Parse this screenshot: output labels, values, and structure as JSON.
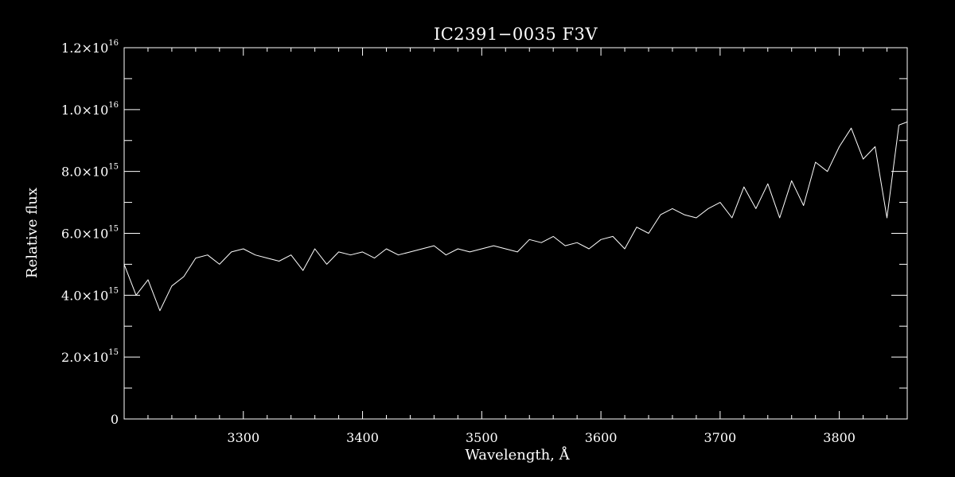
{
  "chart_data": {
    "type": "line",
    "title": "IC2391−0035   F3V",
    "xlabel": "Wavelength, Å",
    "ylabel": "Relative flux",
    "xlim": [
      3200,
      3857
    ],
    "ylim": [
      0,
      1.2e+16
    ],
    "x_ticks": [
      {
        "value": 3300,
        "label": "3300"
      },
      {
        "value": 3400,
        "label": "3400"
      },
      {
        "value": 3500,
        "label": "3500"
      },
      {
        "value": 3600,
        "label": "3600"
      },
      {
        "value": 3700,
        "label": "3700"
      },
      {
        "value": 3800,
        "label": "3800"
      }
    ],
    "y_ticks": [
      {
        "value": 0,
        "mantissa": "0",
        "exponent": ""
      },
      {
        "value": 2000000000000000.0,
        "mantissa": "2.0×10",
        "exponent": "15"
      },
      {
        "value": 4000000000000000.0,
        "mantissa": "4.0×10",
        "exponent": "15"
      },
      {
        "value": 6000000000000000.0,
        "mantissa": "6.0×10",
        "exponent": "15"
      },
      {
        "value": 8000000000000000.0,
        "mantissa": "8.0×10",
        "exponent": "15"
      },
      {
        "value": 1e+16,
        "mantissa": "1.0×10",
        "exponent": "16"
      },
      {
        "value": 1.2e+16,
        "mantissa": "1.2×10",
        "exponent": "16"
      }
    ],
    "series": [
      {
        "x": [
          3200,
          3210,
          3220,
          3230,
          3240,
          3250,
          3260,
          3270,
          3280,
          3290,
          3300,
          3310,
          3320,
          3330,
          3340,
          3350,
          3360,
          3370,
          3380,
          3390,
          3400,
          3410,
          3420,
          3430,
          3440,
          3450,
          3460,
          3470,
          3480,
          3490,
          3500,
          3510,
          3520,
          3530,
          3540,
          3550,
          3560,
          3570,
          3580,
          3590,
          3600,
          3610,
          3620,
          3630,
          3640,
          3650,
          3660,
          3670,
          3680,
          3690,
          3700,
          3710,
          3720,
          3730,
          3740,
          3750,
          3760,
          3770,
          3780,
          3790,
          3800,
          3810,
          3820,
          3830,
          3840,
          3850,
          3857
        ],
        "y": [
          5000000000000000.0,
          4000000000000000.0,
          4500000000000000.0,
          3500000000000000.0,
          4300000000000000.0,
          4600000000000000.0,
          5200000000000000.0,
          5300000000000000.0,
          5000000000000000.0,
          5400000000000000.0,
          5500000000000000.0,
          5300000000000000.0,
          5200000000000000.0,
          5100000000000000.0,
          5300000000000000.0,
          4800000000000000.0,
          5500000000000000.0,
          5000000000000000.0,
          5400000000000000.0,
          5300000000000000.0,
          5400000000000000.0,
          5200000000000000.0,
          5500000000000000.0,
          5300000000000000.0,
          5400000000000000.0,
          5500000000000000.0,
          5600000000000000.0,
          5300000000000000.0,
          5500000000000000.0,
          5400000000000000.0,
          5500000000000000.0,
          5600000000000000.0,
          5500000000000000.0,
          5400000000000000.0,
          5800000000000000.0,
          5700000000000000.0,
          5900000000000000.0,
          5600000000000000.0,
          5700000000000000.0,
          5500000000000000.0,
          5800000000000000.0,
          5900000000000000.0,
          5500000000000000.0,
          6200000000000000.0,
          6000000000000000.0,
          6600000000000000.0,
          6800000000000000.0,
          6600000000000000.0,
          6500000000000000.0,
          6800000000000000.0,
          7000000000000000.0,
          6500000000000000.0,
          7500000000000000.0,
          6800000000000000.0,
          7600000000000000.0,
          6500000000000000.0,
          7700000000000000.0,
          6900000000000000.0,
          8300000000000000.0,
          8000000000000000.0,
          8800000000000000.0,
          9400000000000000.0,
          8400000000000000.0,
          8800000000000000.0,
          6500000000000000.0,
          9500000000000000.0,
          9600000000000000.0
        ]
      }
    ]
  }
}
